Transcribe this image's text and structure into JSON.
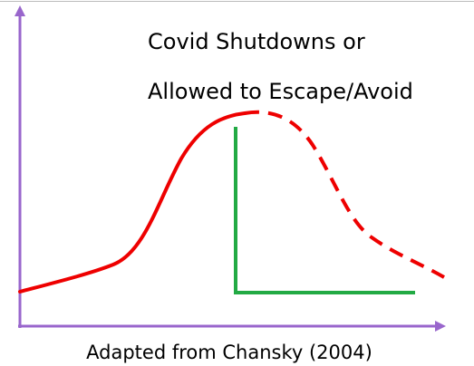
{
  "labels": {
    "line1": "Covid Shutdowns or",
    "line2": "Allowed to Escape/Avoid",
    "caption": "Adapted from Chansky (2004)"
  }
}
